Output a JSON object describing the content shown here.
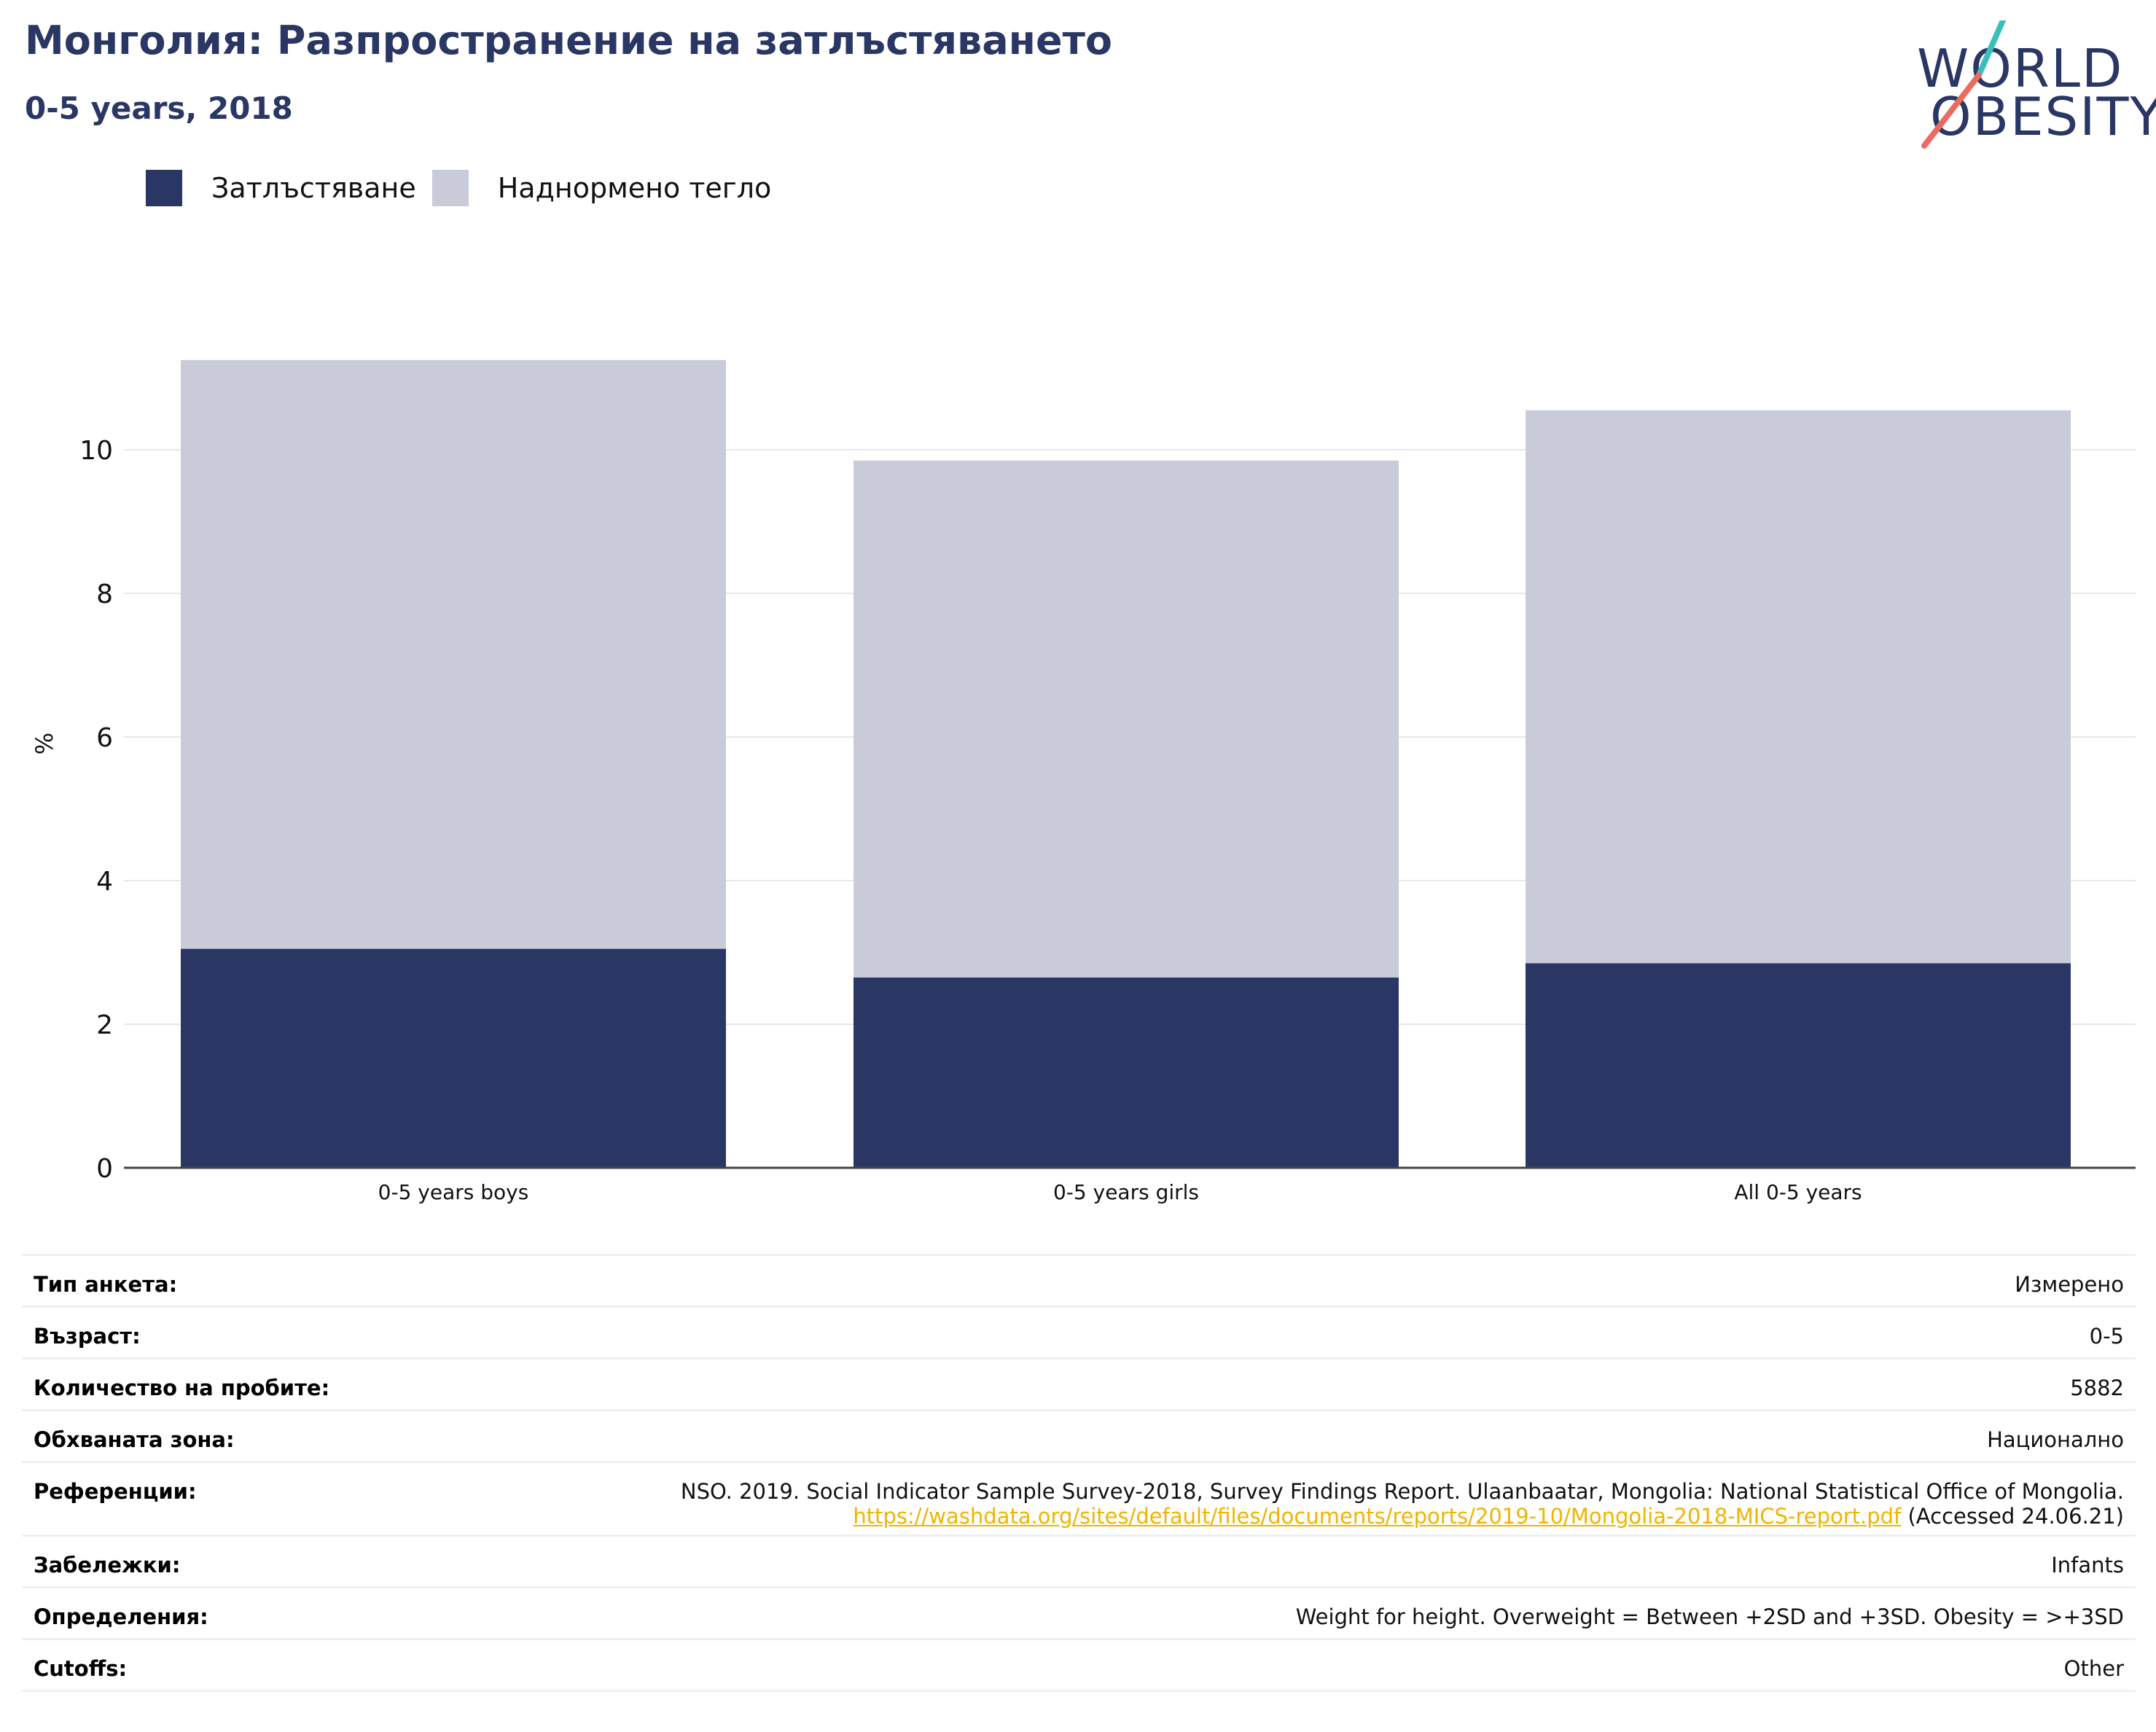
{
  "title": "Монголия: Разпространение на затлъстяването",
  "subtitle": "0-5 years, 2018",
  "logo": {
    "line1": "WORLD",
    "line2": "OBESITY",
    "colors": {
      "text": "#2a3764",
      "slash_top": "#3bbfb8",
      "slash_bottom": "#e86c5f"
    }
  },
  "legend": [
    {
      "label": "Затлъстяване",
      "color": "#2a3764"
    },
    {
      "label": "Наднормено тегло",
      "color": "#c9ccd8"
    }
  ],
  "chart_data": {
    "type": "bar",
    "stacked": true,
    "categories": [
      "0-5 years boys",
      "0-5 years girls",
      "All 0-5 years"
    ],
    "series": [
      {
        "name": "Затлъстяване",
        "values": [
          3.05,
          2.65,
          2.85
        ],
        "color": "#2a3764"
      },
      {
        "name": "Наднормено тегло",
        "values": [
          8.2,
          7.2,
          7.7
        ],
        "color": "#c9ccd8"
      }
    ],
    "ylabel": "%",
    "ylim": [
      0,
      12
    ],
    "yticks": [
      0,
      2,
      4,
      6,
      8,
      10
    ],
    "grid": true,
    "legend_position": "top-left"
  },
  "info": [
    {
      "label": "Тип анкета:",
      "value": "Измерено"
    },
    {
      "label": "Възраст:",
      "value": "0-5"
    },
    {
      "label": "Количество на пробите:",
      "value": "5882"
    },
    {
      "label": "Обхваната зона:",
      "value": "Национално"
    },
    {
      "label": "Референции:",
      "value": "NSO. 2019. Social Indicator Sample Survey-2018, Survey Findings Report. Ulaanbaatar, Mongolia: National Statistical Office of Mongolia.",
      "link": "https://washdata.org/sites/default/files/documents/reports/2019-10/Mongolia-2018-MICS-report.pdf",
      "suffix": " (Accessed 24.06.21)"
    },
    {
      "label": "Забележки:",
      "value": "Infants"
    },
    {
      "label": "Определения:",
      "value": "Weight for height. Overweight = Between +2SD and +3SD. Obesity = >+3SD"
    },
    {
      "label": "Cutoffs:",
      "value": "Other"
    }
  ]
}
